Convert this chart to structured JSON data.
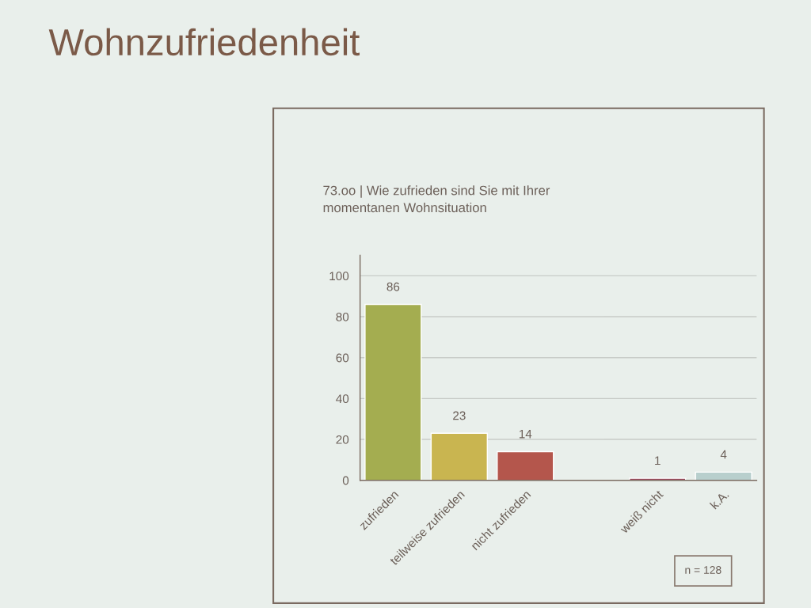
{
  "chart_data": {
    "type": "bar",
    "title": "Wohnzufriedenheit",
    "subtitle": "73.oo | Wie zufrieden sind Sie mit Ihrer\nmomentanen Wohnsituation",
    "categories": [
      "zufrieden",
      "teilweise zufrieden",
      "nicht zufrieden",
      null,
      "weiß nicht",
      "k.A."
    ],
    "values": [
      86,
      23,
      14,
      null,
      1,
      4
    ],
    "colors": [
      "#a4ad50",
      "#c9b550",
      "#b4564c",
      null,
      "#9c4a5c",
      "#b8cfcd"
    ],
    "ylim": [
      0,
      110
    ],
    "yticks": [
      0,
      20,
      40,
      60,
      80,
      100
    ],
    "grid": "y",
    "data_labels": true,
    "annotations": [
      "n = 128"
    ]
  }
}
